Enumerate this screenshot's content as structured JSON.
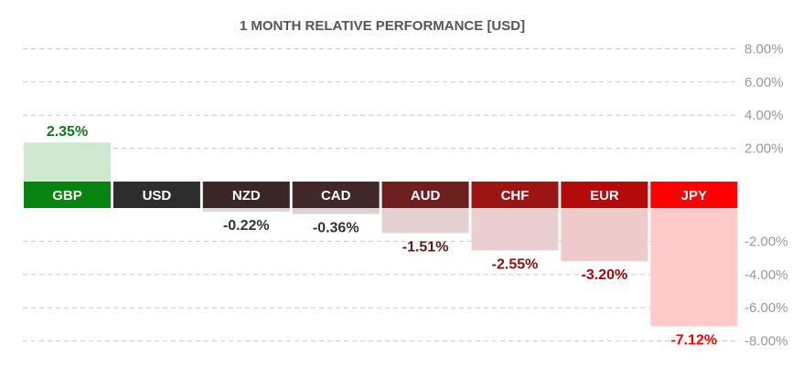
{
  "chart_data": {
    "type": "bar",
    "title": "1 MONTH RELATIVE PERFORMANCE  [USD]",
    "categories": [
      "GBP",
      "USD",
      "NZD",
      "CAD",
      "AUD",
      "CHF",
      "EUR",
      "JPY"
    ],
    "values": [
      2.35,
      0,
      -0.22,
      -0.36,
      -1.51,
      -2.55,
      -3.2,
      -7.12
    ],
    "value_labels": [
      "2.35%",
      "",
      "-0.22%",
      "-0.36%",
      "-1.51%",
      "-2.55%",
      "-3.20%",
      "-7.12%"
    ],
    "ylim": [
      -8,
      8
    ],
    "y_ticks": [
      8,
      6,
      4,
      2,
      -2,
      -4,
      -6,
      -8
    ],
    "y_tick_labels": [
      "8.00%",
      "6.00%",
      "4.00%",
      "2.00%",
      "-2.00%",
      "-4.00%",
      "-6.00%",
      "-8.00%"
    ],
    "grid": true,
    "y_axis_position": "right",
    "colors": {
      "header": [
        "#05850f",
        "#2d2d2d",
        "#3b2626",
        "#422828",
        "#6e2020",
        "#9c1414",
        "#b50a0a",
        "#ff0000"
      ],
      "fill": [
        "#cfe8cf",
        "#d8d8d8",
        "#d8d8d8",
        "#dcd4d4",
        "#e3d0d0",
        "#ebcfd0",
        "#edcbcb",
        "#ffcaca"
      ],
      "label": [
        "#0a7d14",
        "#333333",
        "#333333",
        "#333333",
        "#5a1a1a",
        "#8b1010",
        "#9e0b0b",
        "#ff0000"
      ]
    }
  }
}
